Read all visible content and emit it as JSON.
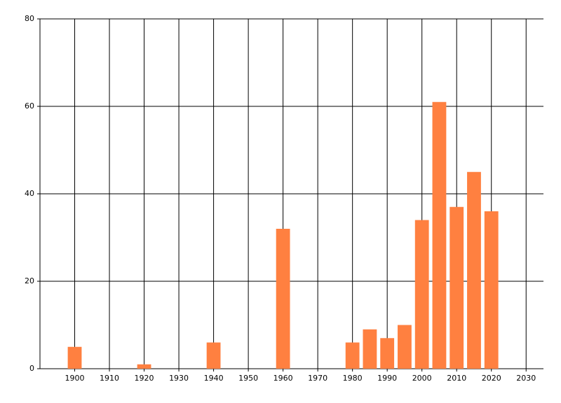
{
  "chart_data": {
    "type": "bar",
    "x": [
      1900,
      1920,
      1940,
      1960,
      1980,
      1985,
      1990,
      1995,
      2000,
      2005,
      2010,
      2015,
      2020
    ],
    "values": [
      5,
      1,
      6,
      32,
      6,
      9,
      7,
      10,
      34,
      61,
      37,
      45,
      36
    ],
    "color": "#ff8040",
    "xlim": [
      1890,
      2035
    ],
    "xticks": [
      1900,
      1910,
      1920,
      1930,
      1940,
      1950,
      1960,
      1970,
      1980,
      1990,
      2000,
      2010,
      2020,
      2030
    ],
    "ylim": [
      0,
      80
    ],
    "yticks": [
      0,
      20,
      40,
      60,
      80
    ],
    "grid": true
  }
}
